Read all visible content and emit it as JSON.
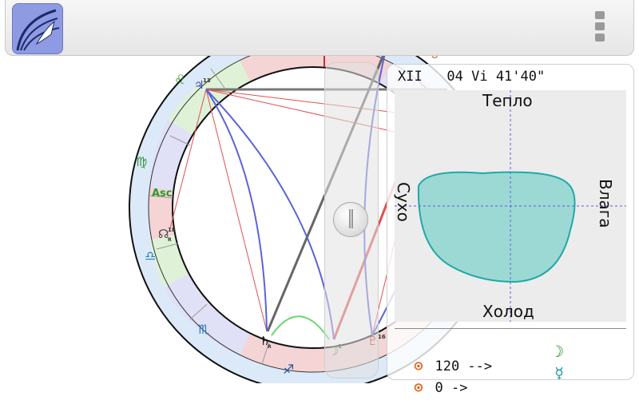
{
  "app": {
    "icon": "app-logo-icon",
    "menu_icon": "overflow-menu-icon"
  },
  "wheel": {
    "house_label": "Mc",
    "asc_label": "Asc",
    "signs": [
      "♋",
      "♊",
      "♉",
      "♌",
      "♍",
      "♎",
      "♏",
      "♐"
    ],
    "planets": [
      {
        "name": "jupiter",
        "glyph": "♃",
        "degree": "13"
      },
      {
        "name": "venus",
        "glyph": "♀",
        "degree": "29"
      },
      {
        "name": "node",
        "glyph": "☊",
        "degree": "18"
      },
      {
        "name": "saturn",
        "glyph": "♄",
        "degree": ""
      },
      {
        "name": "moon",
        "glyph": "☽",
        "degree": "1"
      },
      {
        "name": "pluto",
        "glyph": "♇",
        "degree": "16"
      }
    ],
    "retro_mark": "R"
  },
  "info": {
    "position": "XII   04 Vi 41'40\"",
    "warm": "Тепло",
    "cold": "Холод",
    "dry": "Сухо",
    "wet": "Влага"
  },
  "aspects": [
    {
      "symbol": "⊙",
      "text": "120 -->",
      "planet": "☽",
      "planet_color": "#1a8a1a"
    },
    {
      "symbol": "⊙",
      "text": "0 ->",
      "planet": "☿",
      "planet_color": "#1a9a9a"
    }
  ],
  "colors": {
    "accent_blue": "#5b63d8",
    "aspect_red": "#e05050",
    "aspect_gray": "#666666",
    "teal_fill": "#8fd6d0",
    "teal_stroke": "#20a8a8"
  }
}
